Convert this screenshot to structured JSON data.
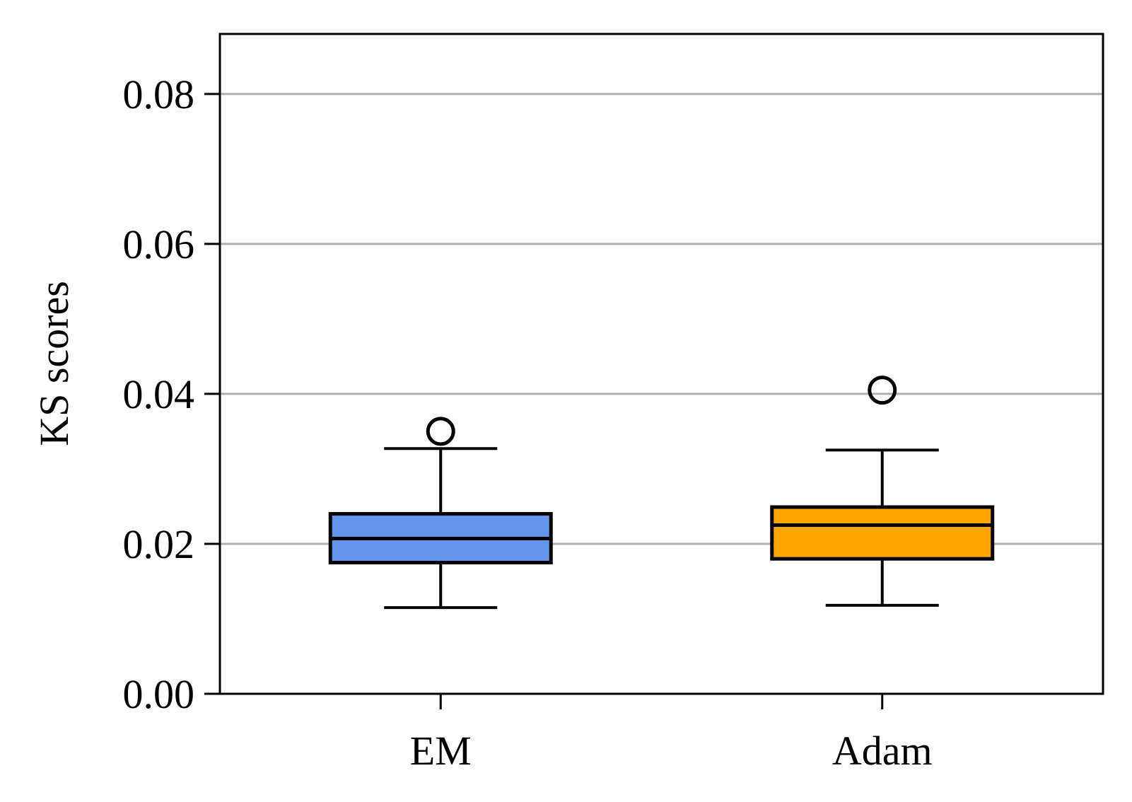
{
  "chart_data": {
    "type": "box",
    "title": "",
    "xlabel": "",
    "ylabel": "KS scores",
    "ylim": [
      0.0,
      0.088
    ],
    "yticks": [
      "0.00",
      "0.02",
      "0.04",
      "0.06",
      "0.08"
    ],
    "ytick_values": [
      0.0,
      0.02,
      0.04,
      0.06,
      0.08
    ],
    "grid": "horizontal",
    "categories": [
      "EM",
      "Adam"
    ],
    "boxes": [
      {
        "category": "EM",
        "color": "#6495ED",
        "whisker_low": 0.0115,
        "q1": 0.0175,
        "median": 0.0207,
        "q3": 0.024,
        "whisker_high": 0.0327,
        "outliers": [
          0.035
        ]
      },
      {
        "category": "Adam",
        "color": "#FFA500",
        "whisker_low": 0.0118,
        "q1": 0.018,
        "median": 0.0225,
        "q3": 0.0249,
        "whisker_high": 0.0325,
        "outliers": [
          0.0405
        ]
      }
    ]
  }
}
